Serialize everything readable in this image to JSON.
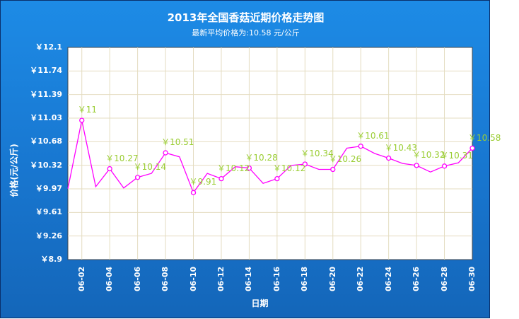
{
  "chart_data": {
    "type": "line",
    "title": "2013年全国香菇近期价格走势图",
    "subtitle": "最新平均价格为:10.58 元/公斤",
    "xlabel": "日期",
    "ylabel": "价格(元/公斤)",
    "ylim": [
      8.9,
      12.1
    ],
    "y_ticks": [
      "￥12.1",
      "￥11.74",
      "￥11.39",
      "￥11.03",
      "￥10.68",
      "￥10.32",
      "￥9.97",
      "￥9.61",
      "￥9.26",
      "￥8.9"
    ],
    "x": [
      "06-01",
      "06-02",
      "06-03",
      "06-04",
      "06-05",
      "06-06",
      "06-07",
      "06-08",
      "06-09",
      "06-10",
      "06-11",
      "06-12",
      "06-13",
      "06-14",
      "06-15",
      "06-16",
      "06-17",
      "06-18",
      "06-19",
      "06-20",
      "06-21",
      "06-22",
      "06-23",
      "06-24",
      "06-25",
      "06-26",
      "06-27",
      "06-28",
      "06-29",
      "06-30"
    ],
    "x_tick_labels": [
      "06-02",
      "06-04",
      "06-06",
      "06-08",
      "06-10",
      "06-12",
      "06-14",
      "06-16",
      "06-18",
      "06-20",
      "06-22",
      "06-24",
      "06-26",
      "06-28",
      "06-30"
    ],
    "series": [
      {
        "color": "#ff00ff",
        "values": [
          9.97,
          11.0,
          10.0,
          10.27,
          9.98,
          10.14,
          10.2,
          10.51,
          10.45,
          9.91,
          10.2,
          10.12,
          10.3,
          10.28,
          10.05,
          10.12,
          10.32,
          10.34,
          10.26,
          10.26,
          10.58,
          10.61,
          10.5,
          10.43,
          10.35,
          10.32,
          10.22,
          10.31,
          10.36,
          10.58
        ]
      }
    ],
    "data_labels": [
      {
        "x": "06-02",
        "text": "￥11"
      },
      {
        "x": "06-04",
        "text": "￥10.27"
      },
      {
        "x": "06-06",
        "text": "￥10.14"
      },
      {
        "x": "06-08",
        "text": "￥10.51"
      },
      {
        "x": "06-10",
        "text": "￥9.91"
      },
      {
        "x": "06-12",
        "text": "￥10.12"
      },
      {
        "x": "06-14",
        "text": "￥10.28"
      },
      {
        "x": "06-16",
        "text": "￥10.12"
      },
      {
        "x": "06-18",
        "text": "￥10.34"
      },
      {
        "x": "06-20",
        "text": "￥10.26"
      },
      {
        "x": "06-22",
        "text": "￥10.61"
      },
      {
        "x": "06-24",
        "text": "￥10.43"
      },
      {
        "x": "06-26",
        "text": "￥10.32"
      },
      {
        "x": "06-28",
        "text": "￥10.31"
      },
      {
        "x": "06-30",
        "text": "￥10.58"
      }
    ],
    "grid": true,
    "plot_background": "#ffffff",
    "gridline_color": "#e4dcc0",
    "label_color": "#9acd32"
  }
}
